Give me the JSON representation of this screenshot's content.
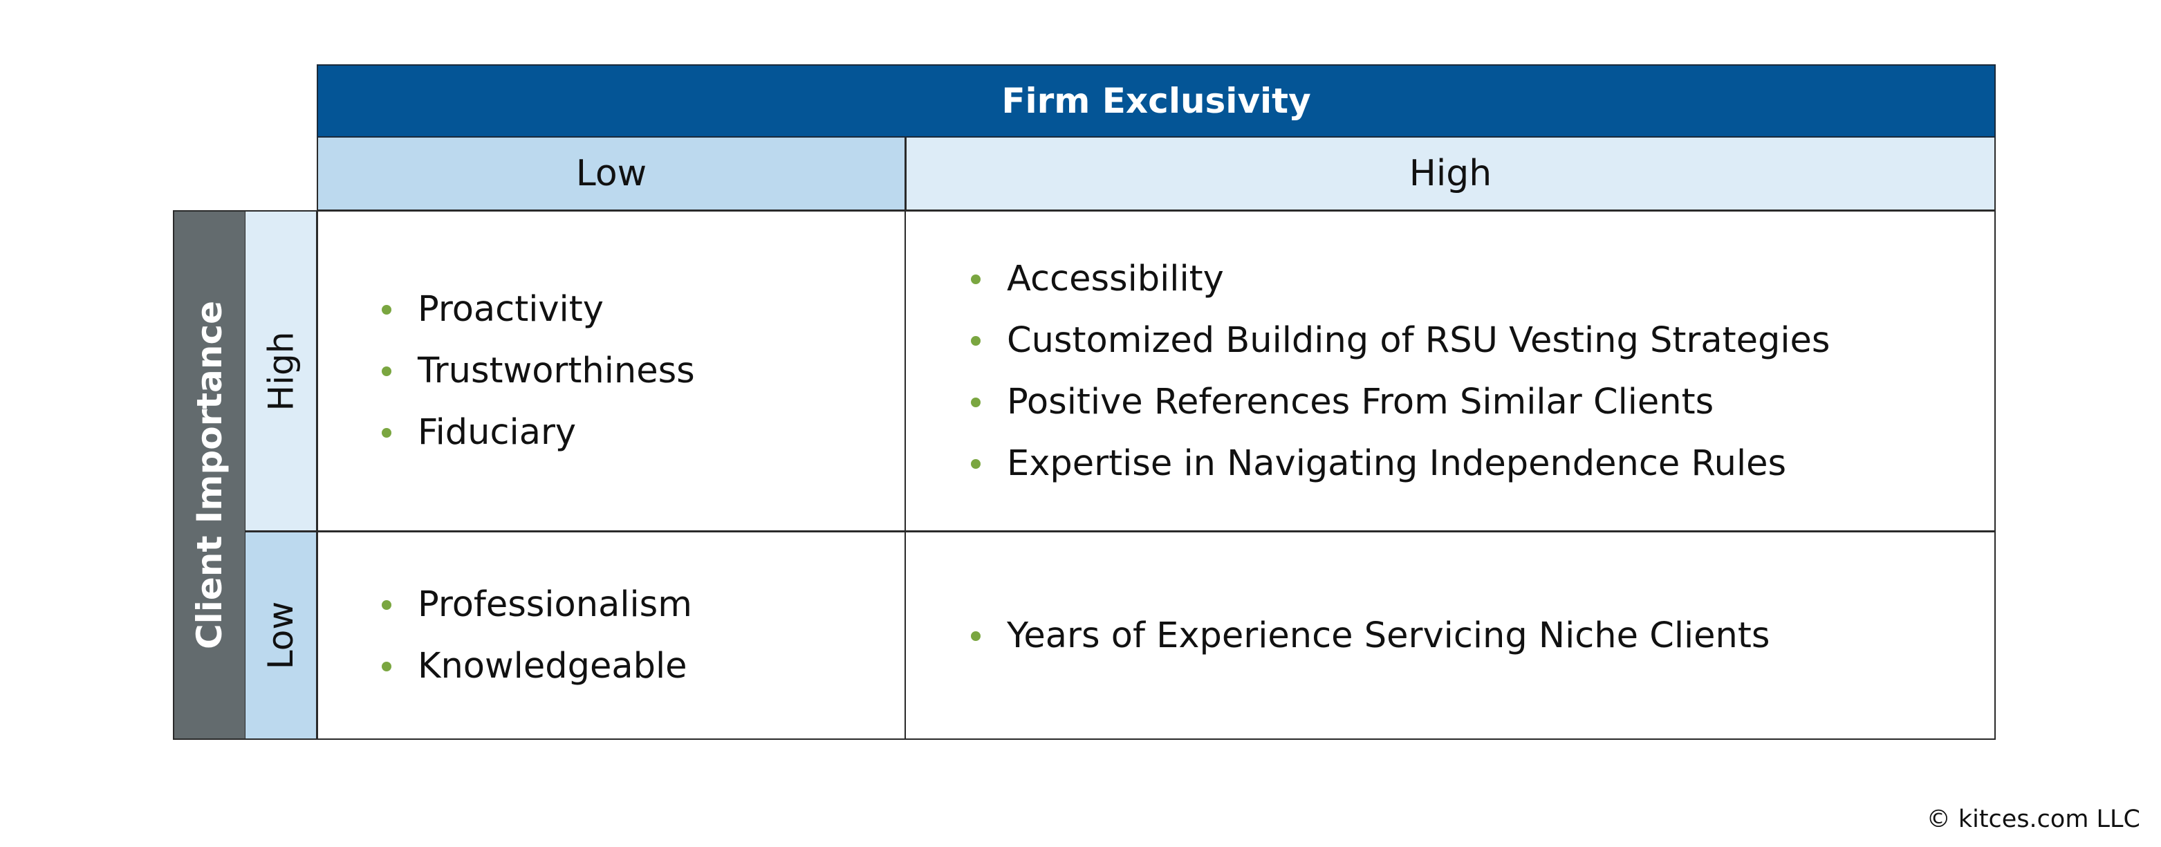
{
  "column_axis": {
    "title": "Firm Exclusivity",
    "low": "Low",
    "high": "High"
  },
  "row_axis": {
    "title": "Client Importance",
    "high": "High",
    "low": "Low"
  },
  "cells": {
    "high_low": [
      "Proactivity",
      "Trustworthiness",
      "Fiduciary"
    ],
    "high_high": [
      "Accessibility",
      "Customized Building of RSU Vesting Strategies",
      "Positive References From Similar Clients",
      "Expertise in Navigating Independence Rules"
    ],
    "low_low": [
      "Professionalism",
      "Knowledgeable"
    ],
    "low_high": [
      "Years of Experience Servicing Niche Clients"
    ]
  },
  "colors": {
    "header_dark_blue": "#045596",
    "header_light_blue": "#bcd9ee",
    "header_pale_blue": "#ddecf7",
    "row_axis_gray": "#636b6e",
    "bullet_green": "#7aa640"
  },
  "copyright": "© kitces.com LLC"
}
